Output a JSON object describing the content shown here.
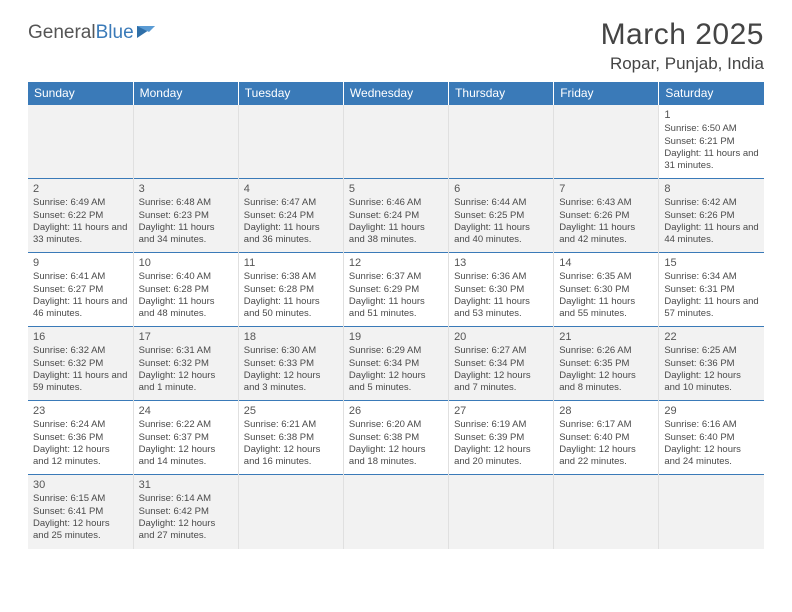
{
  "logo": {
    "text1": "General",
    "text2": "Blue"
  },
  "title": "March 2025",
  "location": "Ropar, Punjab, India",
  "colors": {
    "header_bg": "#3a7ab8",
    "header_text": "#ffffff",
    "row_alt_bg": "#f2f2f2",
    "cell_border_top": "#3a7ab8",
    "text": "#4a4a4a"
  },
  "weekdays": [
    "Sunday",
    "Monday",
    "Tuesday",
    "Wednesday",
    "Thursday",
    "Friday",
    "Saturday"
  ],
  "grid": [
    [
      null,
      null,
      null,
      null,
      null,
      null,
      {
        "d": "1",
        "sr": "6:50 AM",
        "ss": "6:21 PM",
        "dl": "11 hours and 31 minutes."
      }
    ],
    [
      {
        "d": "2",
        "sr": "6:49 AM",
        "ss": "6:22 PM",
        "dl": "11 hours and 33 minutes."
      },
      {
        "d": "3",
        "sr": "6:48 AM",
        "ss": "6:23 PM",
        "dl": "11 hours and 34 minutes."
      },
      {
        "d": "4",
        "sr": "6:47 AM",
        "ss": "6:24 PM",
        "dl": "11 hours and 36 minutes."
      },
      {
        "d": "5",
        "sr": "6:46 AM",
        "ss": "6:24 PM",
        "dl": "11 hours and 38 minutes."
      },
      {
        "d": "6",
        "sr": "6:44 AM",
        "ss": "6:25 PM",
        "dl": "11 hours and 40 minutes."
      },
      {
        "d": "7",
        "sr": "6:43 AM",
        "ss": "6:26 PM",
        "dl": "11 hours and 42 minutes."
      },
      {
        "d": "8",
        "sr": "6:42 AM",
        "ss": "6:26 PM",
        "dl": "11 hours and 44 minutes."
      }
    ],
    [
      {
        "d": "9",
        "sr": "6:41 AM",
        "ss": "6:27 PM",
        "dl": "11 hours and 46 minutes."
      },
      {
        "d": "10",
        "sr": "6:40 AM",
        "ss": "6:28 PM",
        "dl": "11 hours and 48 minutes."
      },
      {
        "d": "11",
        "sr": "6:38 AM",
        "ss": "6:28 PM",
        "dl": "11 hours and 50 minutes."
      },
      {
        "d": "12",
        "sr": "6:37 AM",
        "ss": "6:29 PM",
        "dl": "11 hours and 51 minutes."
      },
      {
        "d": "13",
        "sr": "6:36 AM",
        "ss": "6:30 PM",
        "dl": "11 hours and 53 minutes."
      },
      {
        "d": "14",
        "sr": "6:35 AM",
        "ss": "6:30 PM",
        "dl": "11 hours and 55 minutes."
      },
      {
        "d": "15",
        "sr": "6:34 AM",
        "ss": "6:31 PM",
        "dl": "11 hours and 57 minutes."
      }
    ],
    [
      {
        "d": "16",
        "sr": "6:32 AM",
        "ss": "6:32 PM",
        "dl": "11 hours and 59 minutes."
      },
      {
        "d": "17",
        "sr": "6:31 AM",
        "ss": "6:32 PM",
        "dl": "12 hours and 1 minute."
      },
      {
        "d": "18",
        "sr": "6:30 AM",
        "ss": "6:33 PM",
        "dl": "12 hours and 3 minutes."
      },
      {
        "d": "19",
        "sr": "6:29 AM",
        "ss": "6:34 PM",
        "dl": "12 hours and 5 minutes."
      },
      {
        "d": "20",
        "sr": "6:27 AM",
        "ss": "6:34 PM",
        "dl": "12 hours and 7 minutes."
      },
      {
        "d": "21",
        "sr": "6:26 AM",
        "ss": "6:35 PM",
        "dl": "12 hours and 8 minutes."
      },
      {
        "d": "22",
        "sr": "6:25 AM",
        "ss": "6:36 PM",
        "dl": "12 hours and 10 minutes."
      }
    ],
    [
      {
        "d": "23",
        "sr": "6:24 AM",
        "ss": "6:36 PM",
        "dl": "12 hours and 12 minutes."
      },
      {
        "d": "24",
        "sr": "6:22 AM",
        "ss": "6:37 PM",
        "dl": "12 hours and 14 minutes."
      },
      {
        "d": "25",
        "sr": "6:21 AM",
        "ss": "6:38 PM",
        "dl": "12 hours and 16 minutes."
      },
      {
        "d": "26",
        "sr": "6:20 AM",
        "ss": "6:38 PM",
        "dl": "12 hours and 18 minutes."
      },
      {
        "d": "27",
        "sr": "6:19 AM",
        "ss": "6:39 PM",
        "dl": "12 hours and 20 minutes."
      },
      {
        "d": "28",
        "sr": "6:17 AM",
        "ss": "6:40 PM",
        "dl": "12 hours and 22 minutes."
      },
      {
        "d": "29",
        "sr": "6:16 AM",
        "ss": "6:40 PM",
        "dl": "12 hours and 24 minutes."
      }
    ],
    [
      {
        "d": "30",
        "sr": "6:15 AM",
        "ss": "6:41 PM",
        "dl": "12 hours and 25 minutes."
      },
      {
        "d": "31",
        "sr": "6:14 AM",
        "ss": "6:42 PM",
        "dl": "12 hours and 27 minutes."
      },
      null,
      null,
      null,
      null,
      null
    ]
  ],
  "labels": {
    "sunrise": "Sunrise:",
    "sunset": "Sunset:",
    "daylight": "Daylight:"
  }
}
